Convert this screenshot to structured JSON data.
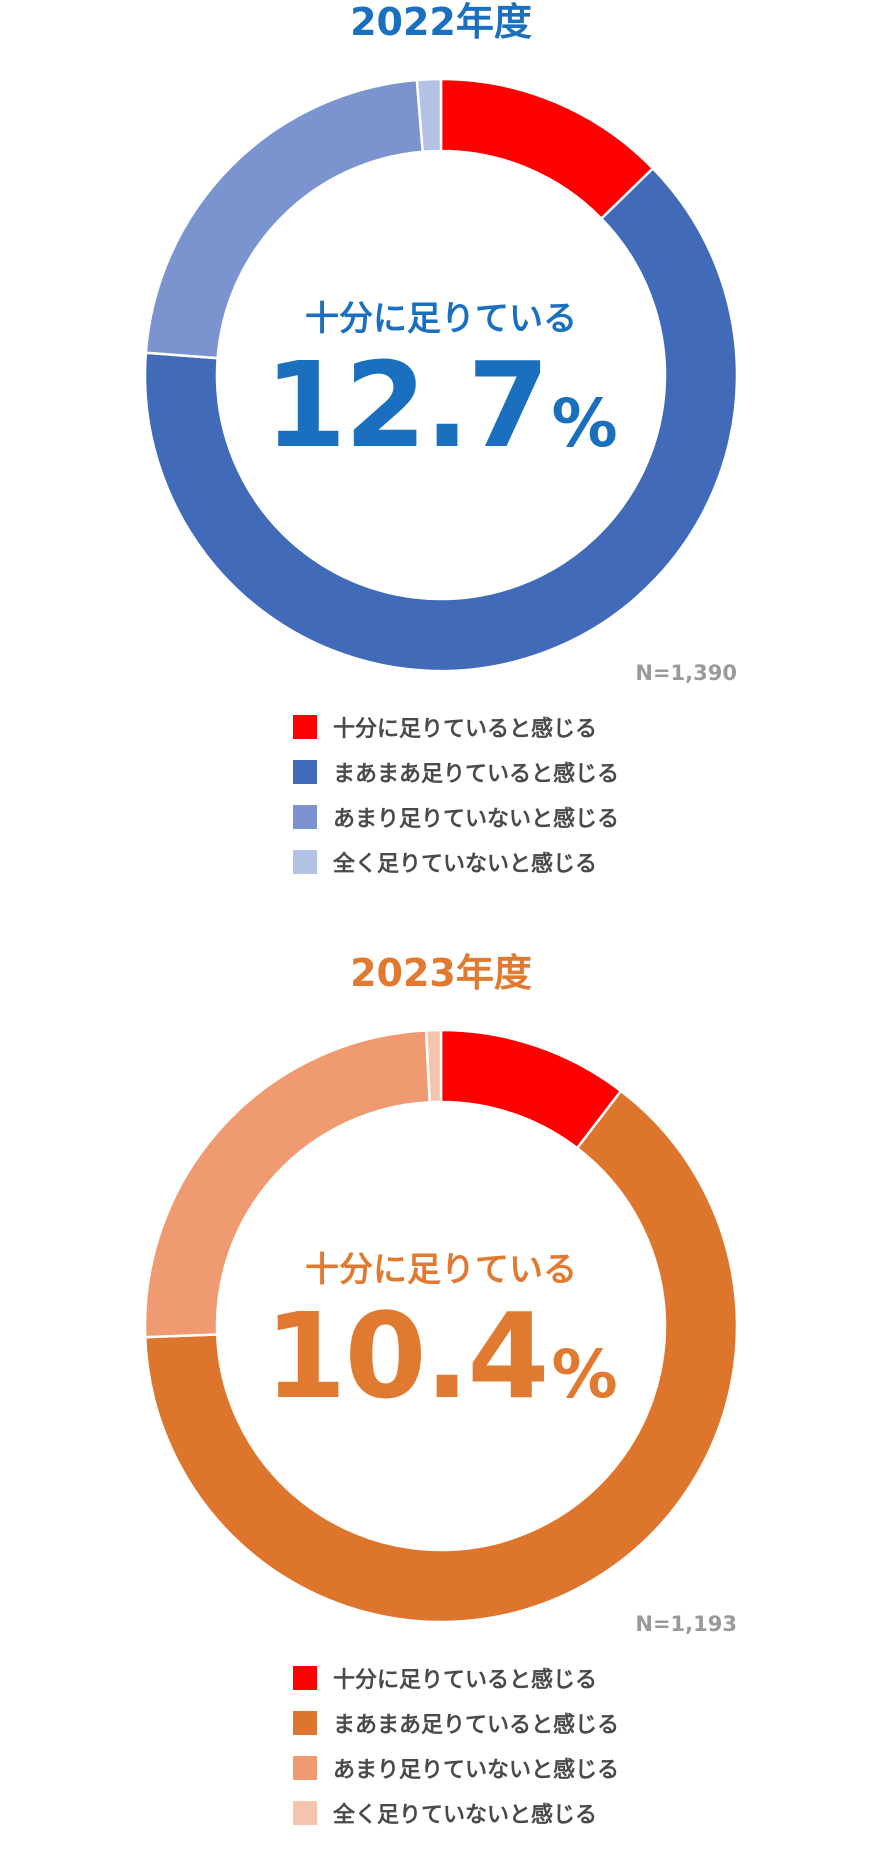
{
  "chart_data": [
    {
      "type": "pie",
      "title": "2022年度",
      "title_color": "#1a6fbe",
      "center_label": "十分に足りている",
      "center_value": "12.7",
      "center_unit": "%",
      "sample_size": "N=1,390",
      "categories": [
        "十分に足りていると感じる",
        "まあまあ足りていると感じる",
        "あまり足りていないと感じる",
        "全く足りていないと感じる"
      ],
      "values": [
        12.7,
        63.5,
        22.5,
        1.3
      ],
      "colors": [
        "#ff0000",
        "#416bb9",
        "#7b94d0",
        "#b3c1e5"
      ],
      "legend_placement": "bottom"
    },
    {
      "type": "pie",
      "title": "2023年度",
      "title_color": "#e07a30",
      "center_label": "十分に足りている",
      "center_value": "10.4",
      "center_unit": "%",
      "sample_size": "N=1,193",
      "categories": [
        "十分に足りていると感じる",
        "まあまあ足りていると感じる",
        "あまり足りていないと感じる",
        "全く足りていないと感じる"
      ],
      "values": [
        10.4,
        64.0,
        24.8,
        0.8
      ],
      "colors": [
        "#ff0000",
        "#de752d",
        "#ef9a70",
        "#f5c4ad"
      ],
      "legend_placement": "bottom"
    }
  ]
}
